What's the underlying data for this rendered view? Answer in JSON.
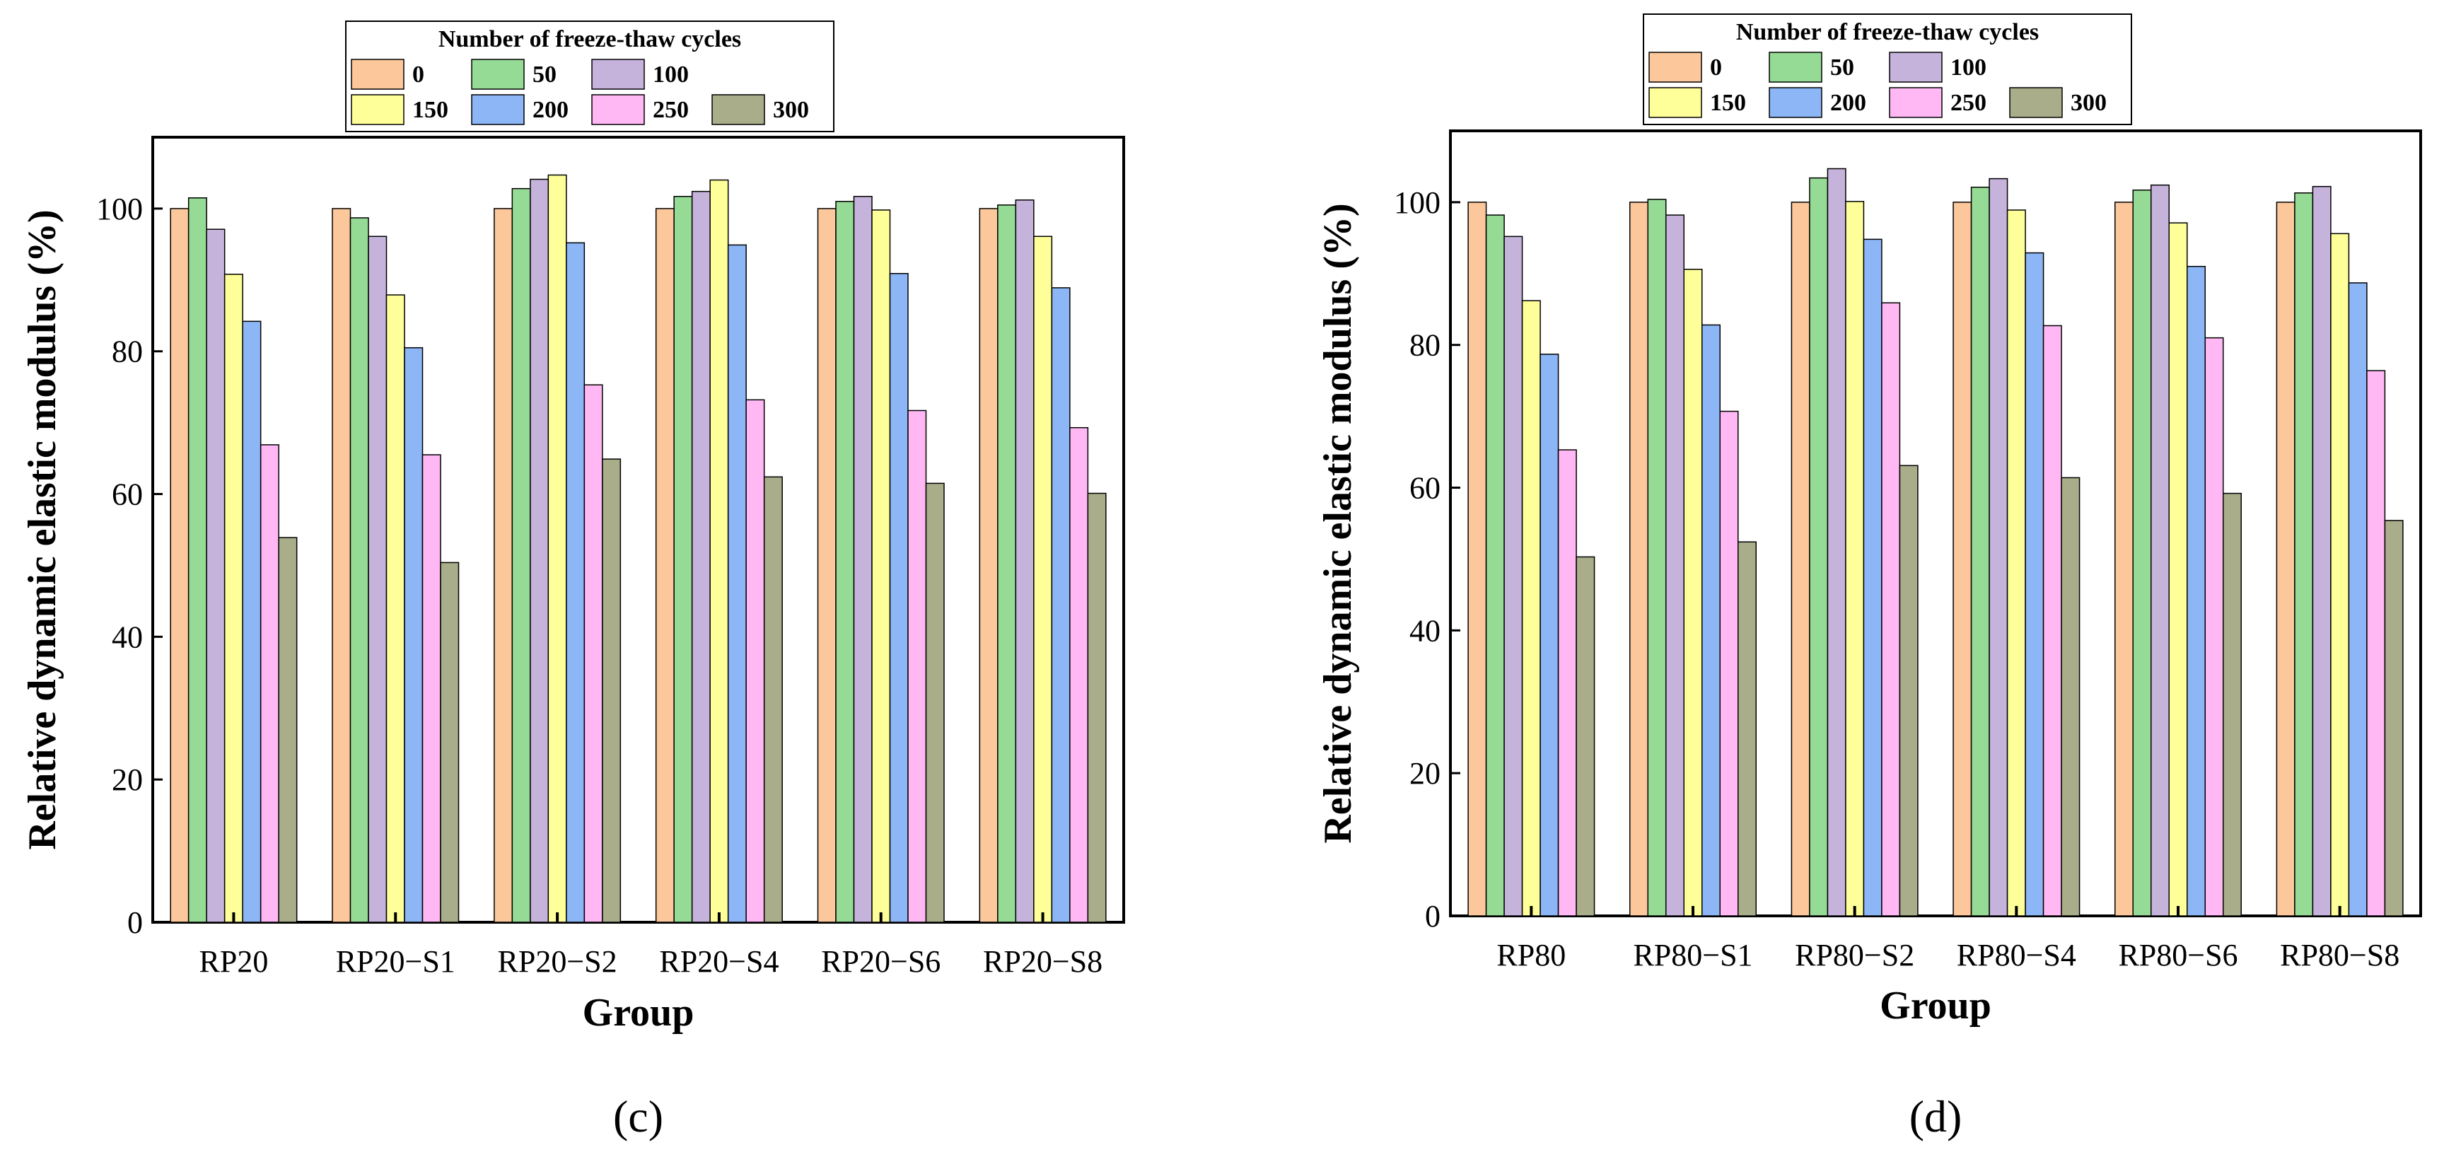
{
  "chart_data": [
    {
      "type": "bar",
      "panel_label": "(c)",
      "title": "",
      "xlabel": "Group",
      "ylabel": "Relative dynamic elastic modulus (%)",
      "ylim": [
        0,
        110
      ],
      "yticks": [
        "0",
        "20",
        "40",
        "60",
        "80",
        "100"
      ],
      "grid": false,
      "legend_placement": "top-center",
      "legend_title": "Number of freeze-thaw cycles",
      "categories": [
        "RP20",
        "RP20−S1",
        "RP20−S2",
        "RP20−S4",
        "RP20−S6",
        "RP20−S8"
      ],
      "series": [
        {
          "name": "0",
          "color": "#FCC79A",
          "values": [
            100,
            100,
            100,
            100,
            100,
            100
          ]
        },
        {
          "name": "50",
          "color": "#95DB95",
          "values": [
            101.5,
            98.7,
            102.8,
            101.7,
            101,
            100.5
          ]
        },
        {
          "name": "100",
          "color": "#C6B3DC",
          "values": [
            97.1,
            96.1,
            104.1,
            102.4,
            101.7,
            101.2
          ]
        },
        {
          "name": "150",
          "color": "#FFFF99",
          "values": [
            90.8,
            87.9,
            104.7,
            104,
            99.8,
            96.1
          ]
        },
        {
          "name": "200",
          "color": "#8CB6F5",
          "values": [
            84.2,
            80.5,
            95.2,
            94.9,
            90.9,
            88.9
          ]
        },
        {
          "name": "250",
          "color": "#FFB8F4",
          "values": [
            66.9,
            65.5,
            75.3,
            73.2,
            71.7,
            69.3
          ]
        },
        {
          "name": "300",
          "color": "#A9AD8A",
          "values": [
            53.9,
            50.4,
            64.9,
            62.4,
            61.5,
            60.1
          ]
        }
      ]
    },
    {
      "type": "bar",
      "panel_label": "(d)",
      "title": "",
      "xlabel": "Group",
      "ylabel": "Relative dynamic elastic modulus (%)",
      "ylim": [
        0,
        110
      ],
      "yticks": [
        "0",
        "20",
        "40",
        "60",
        "80",
        "100"
      ],
      "grid": false,
      "legend_placement": "top-center",
      "legend_title": "Number of freeze-thaw cycles",
      "categories": [
        "RP80",
        "RP80−S1",
        "RP80−S2",
        "RP80−S4",
        "RP80−S6",
        "RP80−S8"
      ],
      "series": [
        {
          "name": "0",
          "color": "#FCC79A",
          "values": [
            100,
            100,
            100,
            100,
            100,
            100
          ]
        },
        {
          "name": "50",
          "color": "#95DB95",
          "values": [
            98.2,
            100.4,
            103.4,
            102.1,
            101.7,
            101.3
          ]
        },
        {
          "name": "100",
          "color": "#C6B3DC",
          "values": [
            95.2,
            98.2,
            104.7,
            103.3,
            102.4,
            102.2
          ]
        },
        {
          "name": "150",
          "color": "#FFFF99",
          "values": [
            86.2,
            90.6,
            100.1,
            98.9,
            97.1,
            95.6
          ]
        },
        {
          "name": "200",
          "color": "#8CB6F5",
          "values": [
            78.7,
            82.8,
            94.8,
            92.9,
            91,
            88.7
          ]
        },
        {
          "name": "250",
          "color": "#FFB8F4",
          "values": [
            65.3,
            70.7,
            85.9,
            82.7,
            81,
            76.4
          ]
        },
        {
          "name": "300",
          "color": "#A9AD8A",
          "values": [
            50.3,
            52.4,
            63.1,
            61.4,
            59.2,
            55.4
          ]
        }
      ]
    }
  ]
}
